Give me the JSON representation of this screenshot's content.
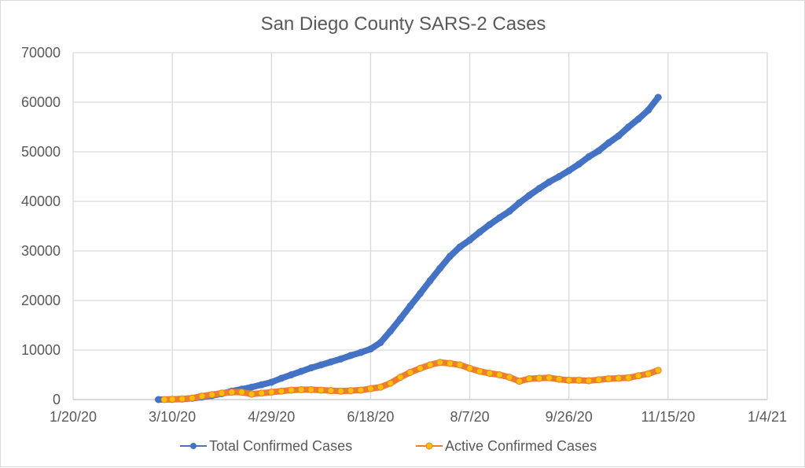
{
  "chart_data": {
    "type": "line",
    "title": "San Diego County SARS-2 Cases",
    "xlabel": "",
    "ylabel": "",
    "x_unit": "days since 1/20/20",
    "xlim": [
      0,
      350
    ],
    "ylim": [
      0,
      70000
    ],
    "x_ticks": [
      0,
      50,
      100,
      150,
      200,
      250,
      300,
      350
    ],
    "x_tick_labels": [
      "1/20/20",
      "3/10/20",
      "4/29/20",
      "6/18/20",
      "8/7/20",
      "9/26/20",
      "11/15/20",
      "1/4/21"
    ],
    "y_ticks": [
      0,
      10000,
      20000,
      30000,
      40000,
      50000,
      60000,
      70000
    ],
    "y_tick_labels": [
      "0",
      "10000",
      "20000",
      "30000",
      "40000",
      "50000",
      "60000",
      "70000"
    ],
    "grid": true,
    "legend_position": "bottom",
    "series": [
      {
        "name": "Total Confirmed Cases",
        "color": "#4472c4",
        "x": [
          43,
          50,
          55,
          60,
          65,
          70,
          75,
          80,
          85,
          90,
          95,
          100,
          105,
          110,
          115,
          120,
          125,
          130,
          135,
          140,
          145,
          150,
          155,
          160,
          165,
          170,
          175,
          180,
          185,
          190,
          195,
          200,
          205,
          210,
          215,
          220,
          225,
          230,
          235,
          240,
          245,
          250,
          255,
          260,
          265,
          270,
          275,
          280,
          285,
          290,
          295
        ],
        "y": [
          0,
          30,
          100,
          250,
          500,
          800,
          1200,
          1700,
          2100,
          2500,
          3000,
          3500,
          4300,
          5000,
          5700,
          6400,
          7000,
          7600,
          8200,
          8900,
          9500,
          10200,
          11500,
          13800,
          16300,
          18900,
          21400,
          24000,
          26500,
          28900,
          30800,
          32200,
          33800,
          35300,
          36700,
          38000,
          39700,
          41200,
          42600,
          43900,
          45000,
          46200,
          47500,
          49000,
          50200,
          51800,
          53200,
          55000,
          56600,
          58400,
          61000
        ]
      },
      {
        "name": "Active Confirmed Cases",
        "color": "#ed7d31",
        "marker_fill": "#ffc000",
        "x": [
          46,
          50,
          55,
          60,
          65,
          70,
          75,
          80,
          85,
          90,
          95,
          100,
          105,
          110,
          115,
          120,
          125,
          130,
          135,
          140,
          145,
          150,
          155,
          160,
          165,
          170,
          175,
          180,
          185,
          190,
          195,
          200,
          205,
          210,
          215,
          220,
          225,
          230,
          235,
          240,
          245,
          250,
          255,
          260,
          265,
          270,
          275,
          280,
          285,
          290,
          295
        ],
        "y": [
          0,
          50,
          150,
          300,
          700,
          1000,
          1300,
          1500,
          1500,
          1100,
          1300,
          1500,
          1700,
          1900,
          2000,
          2000,
          1900,
          1800,
          1700,
          1800,
          1900,
          2200,
          2500,
          3300,
          4500,
          5500,
          6300,
          7000,
          7500,
          7300,
          7000,
          6300,
          5700,
          5300,
          5000,
          4500,
          3700,
          4200,
          4300,
          4400,
          4100,
          3900,
          3900,
          3800,
          4000,
          4200,
          4300,
          4400,
          4800,
          5200,
          5900
        ]
      }
    ]
  }
}
